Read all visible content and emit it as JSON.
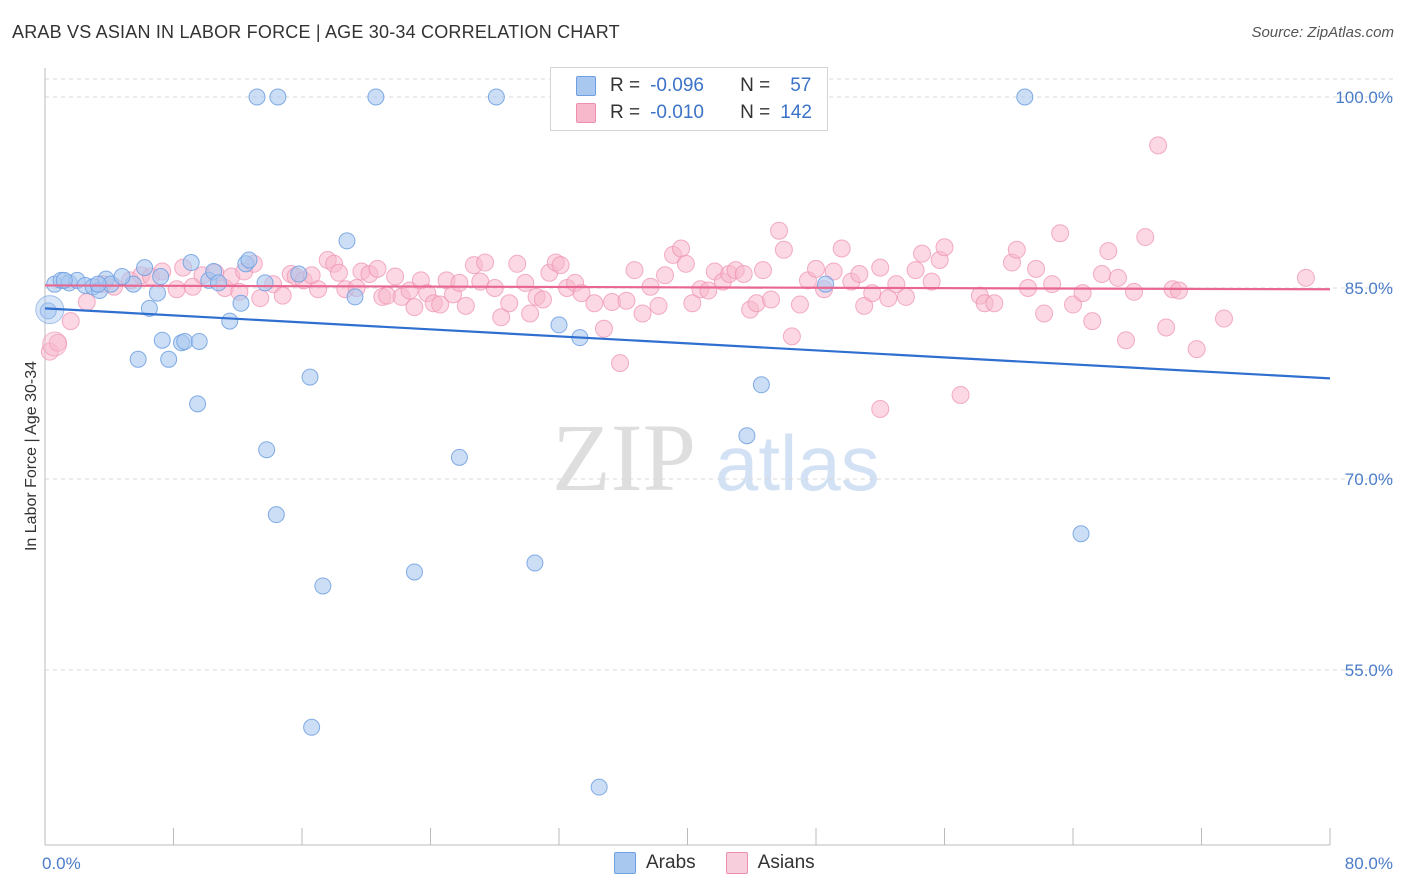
{
  "header": {
    "title": "ARAB VS ASIAN IN LABOR FORCE | AGE 30-34 CORRELATION CHART",
    "source": "Source: ZipAtlas.com"
  },
  "legend": {
    "arabs": {
      "r_label": "R =",
      "r_value": "-0.096",
      "n_label": "N =",
      "n_value": "57"
    },
    "asians": {
      "r_label": "R =",
      "r_value": "-0.010",
      "n_label": "N =",
      "n_value": "142"
    }
  },
  "bottom_legend": {
    "arabs": "Arabs",
    "asians": "Asians"
  },
  "watermark": {
    "zip": "ZIP",
    "atlas": "atlas"
  },
  "colors": {
    "arabs_fill": "#a9c8f0",
    "arabs_stroke": "#6f9fe0",
    "arabs_line": "#2f6fcf",
    "asians_fill": "#f7b8cc",
    "asians_stroke": "#ee8fb0",
    "asians_line": "#e8668f",
    "grid": "#d8d8d8",
    "tick_text": "#4a7cc9"
  },
  "chart_data": {
    "type": "scatter",
    "title": "ARAB VS ASIAN IN LABOR FORCE | AGE 30-34 CORRELATION CHART",
    "xlabel": "",
    "ylabel": "In Labor Force | Age 30-34",
    "xlim": [
      0,
      80
    ],
    "ylim": [
      40,
      103
    ],
    "x_tick_labels": [
      "0.0%",
      "80.0%"
    ],
    "y_ticks": [
      {
        "value": 100,
        "label": "100.0%"
      },
      {
        "value": 85,
        "label": "85.0%"
      },
      {
        "value": 70,
        "label": "70.0%"
      },
      {
        "value": 55,
        "label": "55.0%"
      }
    ],
    "grid": "horizontal dashed",
    "legend_position": "top-center",
    "series": [
      {
        "name": "Arabs",
        "r": -0.096,
        "n": 57,
        "trend": {
          "x": [
            0,
            80
          ],
          "y": [
            83.4,
            77.9
          ]
        },
        "points": [
          [
            0.2,
            83.2
          ],
          [
            0.6,
            85.3
          ],
          [
            1.0,
            85.6
          ],
          [
            1.5,
            85.4
          ],
          [
            2.0,
            85.6
          ],
          [
            2.5,
            85.2
          ],
          [
            3.0,
            85.1
          ],
          [
            3.4,
            84.8
          ],
          [
            3.8,
            85.7
          ],
          [
            4.1,
            85.3
          ],
          [
            5.5,
            85.3
          ],
          [
            7.0,
            84.6
          ],
          [
            8.5,
            80.7
          ],
          [
            5.8,
            79.4
          ],
          [
            9.1,
            87.0
          ],
          [
            6.5,
            83.4
          ],
          [
            7.3,
            80.9
          ],
          [
            7.7,
            79.4
          ],
          [
            8.7,
            80.8
          ],
          [
            9.6,
            80.8
          ],
          [
            10.2,
            85.6
          ],
          [
            10.5,
            86.3
          ],
          [
            10.8,
            85.4
          ],
          [
            11.5,
            82.4
          ],
          [
            12.2,
            83.8
          ],
          [
            12.5,
            86.9
          ],
          [
            12.7,
            87.2
          ],
          [
            13.7,
            85.4
          ],
          [
            15.8,
            86.1
          ],
          [
            16.5,
            78.0
          ],
          [
            18.8,
            88.7
          ],
          [
            19.3,
            84.3
          ],
          [
            9.5,
            75.9
          ],
          [
            13.8,
            72.3
          ],
          [
            14.4,
            67.2
          ],
          [
            16.6,
            50.5
          ],
          [
            17.3,
            61.6
          ],
          [
            23.0,
            62.7
          ],
          [
            25.8,
            71.7
          ],
          [
            30.5,
            63.4
          ],
          [
            32.0,
            82.1
          ],
          [
            33.3,
            81.1
          ],
          [
            34.5,
            45.8
          ],
          [
            43.7,
            73.4
          ],
          [
            44.6,
            77.4
          ],
          [
            48.6,
            85.3
          ],
          [
            64.5,
            65.7
          ],
          [
            13.2,
            100.0
          ],
          [
            14.5,
            100.0
          ],
          [
            20.6,
            100.0
          ],
          [
            28.1,
            100.0
          ],
          [
            61.0,
            100.0
          ],
          [
            7.2,
            85.9
          ],
          [
            6.2,
            86.6
          ],
          [
            4.8,
            85.9
          ],
          [
            3.3,
            85.3
          ],
          [
            1.2,
            85.6
          ]
        ]
      },
      {
        "name": "Asians",
        "r": -0.01,
        "n": 142,
        "trend": {
          "x": [
            0,
            80
          ],
          "y": [
            85.2,
            84.9
          ]
        },
        "points": [
          [
            0.3,
            80.0
          ],
          [
            0.8,
            80.7
          ],
          [
            1.6,
            82.4
          ],
          [
            2.6,
            83.9
          ],
          [
            3.6,
            85.3
          ],
          [
            4.3,
            85.1
          ],
          [
            5.3,
            85.6
          ],
          [
            6.0,
            86.0
          ],
          [
            6.6,
            85.9
          ],
          [
            7.3,
            86.3
          ],
          [
            8.2,
            84.9
          ],
          [
            8.6,
            86.6
          ],
          [
            9.2,
            85.1
          ],
          [
            9.8,
            86.0
          ],
          [
            10.6,
            86.2
          ],
          [
            11.2,
            85.0
          ],
          [
            11.6,
            85.9
          ],
          [
            12.1,
            84.7
          ],
          [
            12.4,
            86.3
          ],
          [
            13.0,
            86.9
          ],
          [
            13.4,
            84.2
          ],
          [
            14.2,
            85.3
          ],
          [
            14.8,
            84.4
          ],
          [
            15.3,
            86.1
          ],
          [
            15.6,
            85.9
          ],
          [
            16.1,
            85.6
          ],
          [
            16.6,
            86.0
          ],
          [
            17.0,
            84.9
          ],
          [
            17.6,
            87.2
          ],
          [
            18.0,
            86.9
          ],
          [
            18.3,
            86.2
          ],
          [
            18.7,
            84.9
          ],
          [
            19.4,
            85.0
          ],
          [
            19.7,
            86.3
          ],
          [
            20.2,
            86.1
          ],
          [
            20.7,
            86.5
          ],
          [
            21.0,
            84.3
          ],
          [
            21.3,
            84.4
          ],
          [
            21.8,
            85.9
          ],
          [
            22.2,
            84.3
          ],
          [
            22.7,
            84.8
          ],
          [
            23.0,
            83.5
          ],
          [
            23.4,
            85.6
          ],
          [
            23.8,
            84.6
          ],
          [
            24.2,
            83.8
          ],
          [
            24.6,
            83.7
          ],
          [
            25.0,
            85.6
          ],
          [
            25.4,
            84.5
          ],
          [
            25.8,
            85.4
          ],
          [
            26.2,
            83.6
          ],
          [
            26.7,
            86.8
          ],
          [
            27.1,
            85.5
          ],
          [
            27.4,
            87.0
          ],
          [
            28.0,
            85.0
          ],
          [
            28.4,
            82.7
          ],
          [
            28.9,
            83.8
          ],
          [
            29.4,
            86.9
          ],
          [
            29.9,
            85.4
          ],
          [
            30.2,
            83.0
          ],
          [
            30.6,
            84.3
          ],
          [
            31.0,
            84.1
          ],
          [
            31.4,
            86.2
          ],
          [
            31.8,
            87.0
          ],
          [
            32.1,
            86.8
          ],
          [
            32.5,
            85.0
          ],
          [
            33.0,
            85.4
          ],
          [
            33.4,
            84.6
          ],
          [
            34.2,
            83.8
          ],
          [
            34.8,
            81.8
          ],
          [
            35.3,
            83.9
          ],
          [
            35.8,
            79.1
          ],
          [
            36.2,
            84.0
          ],
          [
            36.7,
            86.4
          ],
          [
            37.2,
            83.0
          ],
          [
            37.7,
            85.1
          ],
          [
            38.2,
            83.6
          ],
          [
            38.6,
            86.0
          ],
          [
            39.1,
            87.6
          ],
          [
            39.6,
            88.1
          ],
          [
            39.9,
            86.9
          ],
          [
            40.3,
            83.8
          ],
          [
            40.8,
            84.9
          ],
          [
            41.3,
            84.8
          ],
          [
            41.7,
            86.3
          ],
          [
            42.2,
            85.5
          ],
          [
            42.6,
            86.1
          ],
          [
            43.0,
            86.4
          ],
          [
            43.5,
            86.1
          ],
          [
            43.9,
            83.3
          ],
          [
            44.3,
            83.8
          ],
          [
            44.7,
            86.4
          ],
          [
            45.2,
            84.1
          ],
          [
            45.7,
            89.5
          ],
          [
            46.0,
            88.0
          ],
          [
            46.5,
            81.2
          ],
          [
            47.0,
            83.7
          ],
          [
            47.5,
            85.6
          ],
          [
            48.0,
            86.5
          ],
          [
            48.5,
            84.9
          ],
          [
            49.1,
            86.3
          ],
          [
            49.6,
            88.1
          ],
          [
            50.2,
            85.5
          ],
          [
            50.7,
            86.1
          ],
          [
            51.0,
            83.6
          ],
          [
            51.5,
            84.6
          ],
          [
            52.0,
            86.6
          ],
          [
            52.5,
            84.2
          ],
          [
            53.0,
            85.3
          ],
          [
            53.6,
            84.3
          ],
          [
            54.2,
            86.4
          ],
          [
            54.6,
            87.7
          ],
          [
            55.2,
            85.5
          ],
          [
            55.7,
            87.2
          ],
          [
            56.0,
            88.2
          ],
          [
            57.0,
            76.6
          ],
          [
            58.2,
            84.4
          ],
          [
            58.5,
            83.8
          ],
          [
            59.1,
            83.8
          ],
          [
            60.2,
            87.0
          ],
          [
            60.5,
            88.0
          ],
          [
            61.2,
            85.0
          ],
          [
            61.7,
            86.5
          ],
          [
            62.2,
            83.0
          ],
          [
            62.7,
            85.3
          ],
          [
            63.2,
            89.3
          ],
          [
            64.0,
            83.7
          ],
          [
            64.6,
            84.6
          ],
          [
            65.2,
            82.4
          ],
          [
            65.8,
            86.1
          ],
          [
            66.2,
            87.9
          ],
          [
            66.8,
            85.8
          ],
          [
            67.3,
            80.9
          ],
          [
            67.8,
            84.7
          ],
          [
            68.5,
            89.0
          ],
          [
            69.3,
            96.2
          ],
          [
            69.8,
            81.9
          ],
          [
            70.2,
            84.9
          ],
          [
            70.6,
            84.8
          ],
          [
            71.7,
            80.2
          ],
          [
            73.4,
            82.6
          ],
          [
            78.5,
            85.8
          ],
          [
            52.0,
            75.5
          ]
        ]
      }
    ]
  }
}
